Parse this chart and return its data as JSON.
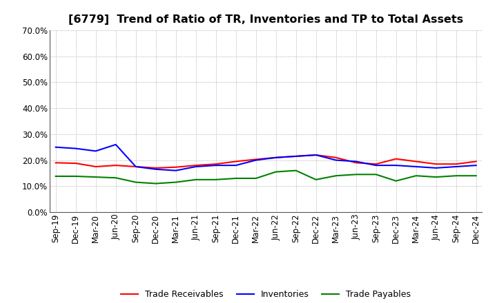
{
  "title": "[6779]  Trend of Ratio of TR, Inventories and TP to Total Assets",
  "x_labels": [
    "Sep-19",
    "Dec-19",
    "Mar-20",
    "Jun-20",
    "Sep-20",
    "Dec-20",
    "Mar-21",
    "Jun-21",
    "Sep-21",
    "Dec-21",
    "Mar-22",
    "Jun-22",
    "Sep-22",
    "Dec-22",
    "Mar-23",
    "Jun-23",
    "Sep-23",
    "Dec-23",
    "Mar-24",
    "Jun-24",
    "Sep-24",
    "Dec-24"
  ],
  "trade_receivables": [
    19.0,
    18.8,
    17.5,
    18.0,
    17.5,
    17.0,
    17.3,
    18.0,
    18.5,
    19.5,
    20.3,
    21.0,
    21.5,
    22.0,
    21.0,
    19.0,
    18.5,
    20.5,
    19.5,
    18.5,
    18.5,
    19.5
  ],
  "inventories": [
    25.0,
    24.5,
    23.5,
    26.0,
    17.5,
    16.5,
    16.0,
    17.5,
    18.0,
    18.0,
    20.0,
    21.0,
    21.5,
    22.0,
    20.0,
    19.5,
    18.0,
    18.0,
    17.5,
    17.0,
    17.5,
    18.0
  ],
  "trade_payables": [
    13.8,
    13.8,
    13.5,
    13.2,
    11.5,
    11.0,
    11.5,
    12.5,
    12.5,
    13.0,
    13.0,
    15.5,
    16.0,
    12.5,
    14.0,
    14.5,
    14.5,
    12.0,
    14.0,
    13.5,
    14.0,
    14.0
  ],
  "tr_color": "#ff0000",
  "inv_color": "#0000ff",
  "tp_color": "#008000",
  "ylim": [
    0.0,
    70.0
  ],
  "yticks": [
    0.0,
    10.0,
    20.0,
    30.0,
    40.0,
    50.0,
    60.0,
    70.0
  ],
  "background_color": "#ffffff",
  "grid_color": "#999999",
  "title_fontsize": 11.5,
  "legend_fontsize": 9,
  "axis_fontsize": 8.5
}
